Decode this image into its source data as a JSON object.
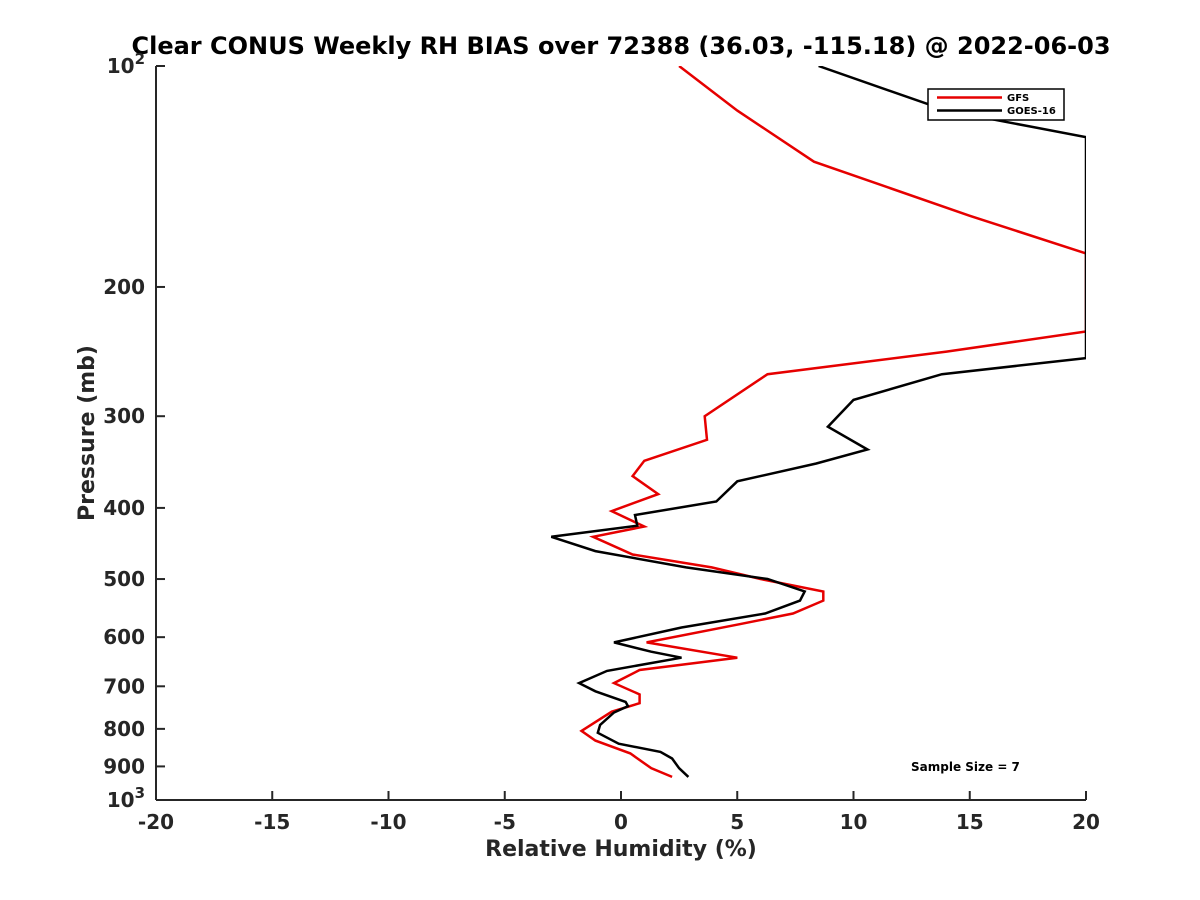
{
  "chart_data": {
    "type": "line",
    "title": "Clear CONUS Weekly RH BIAS over 72388 (36.03, -115.18) @ 2022-06-03",
    "xlabel": "Relative Humidity (%)",
    "ylabel": "Pressure (mb)",
    "xlim": [
      -20,
      20
    ],
    "ylim": [
      100,
      1000
    ],
    "y_scale": "log",
    "y_reversed": true,
    "x_ticks": [
      "-20",
      "-15",
      "-10",
      "-5",
      "0",
      "5",
      "10",
      "15",
      "20"
    ],
    "x_tick_values": [
      -20,
      -15,
      -10,
      -5,
      0,
      5,
      10,
      15,
      20
    ],
    "y_ticks": [
      {
        "value": 100,
        "label": "10",
        "sup": "2"
      },
      {
        "value": 200,
        "label": "200",
        "sup": ""
      },
      {
        "value": 300,
        "label": "300",
        "sup": ""
      },
      {
        "value": 400,
        "label": "400",
        "sup": ""
      },
      {
        "value": 500,
        "label": "500",
        "sup": ""
      },
      {
        "value": 600,
        "label": "600",
        "sup": ""
      },
      {
        "value": 700,
        "label": "700",
        "sup": ""
      },
      {
        "value": 800,
        "label": "800",
        "sup": ""
      },
      {
        "value": 900,
        "label": "900",
        "sup": ""
      },
      {
        "value": 1000,
        "label": "10",
        "sup": "3"
      }
    ],
    "grid": false,
    "legend_position": "top-right",
    "series": [
      {
        "name": "GFS",
        "color": "#e60000",
        "points": [
          [
            2.5,
            100
          ],
          [
            5.0,
            115
          ],
          [
            8.3,
            135
          ],
          [
            15.0,
            160
          ],
          [
            20.0,
            180
          ],
          [
            20.0,
            230
          ],
          [
            14.0,
            245
          ],
          [
            6.3,
            263
          ],
          [
            3.6,
            300
          ],
          [
            3.7,
            323
          ],
          [
            1.0,
            345
          ],
          [
            0.5,
            362
          ],
          [
            1.6,
            383
          ],
          [
            -0.4,
            404
          ],
          [
            1.0,
            424
          ],
          [
            -1.2,
            438
          ],
          [
            0.5,
            463
          ],
          [
            3.9,
            482
          ],
          [
            6.0,
            500
          ],
          [
            8.7,
            520
          ],
          [
            8.7,
            535
          ],
          [
            7.4,
            557
          ],
          [
            5.1,
            576
          ],
          [
            1.1,
            610
          ],
          [
            5.0,
            640
          ],
          [
            0.8,
            665
          ],
          [
            -0.3,
            693
          ],
          [
            0.8,
            718
          ],
          [
            0.8,
            738
          ],
          [
            -0.4,
            758
          ],
          [
            -1.7,
            805
          ],
          [
            -1.1,
            830
          ],
          [
            0.4,
            864
          ],
          [
            1.3,
            905
          ],
          [
            2.2,
            930
          ]
        ]
      },
      {
        "name": "GOES-16",
        "color": "#000000",
        "points": [
          [
            8.5,
            100
          ],
          [
            14.0,
            115
          ],
          [
            20.0,
            125
          ],
          [
            20.0,
            250
          ],
          [
            13.8,
            263
          ],
          [
            10.0,
            285
          ],
          [
            8.9,
            310
          ],
          [
            10.6,
            333
          ],
          [
            8.4,
            348
          ],
          [
            5.0,
            368
          ],
          [
            4.1,
            392
          ],
          [
            0.6,
            409
          ],
          [
            0.7,
            423
          ],
          [
            -3.0,
            438
          ],
          [
            -1.1,
            458
          ],
          [
            2.8,
            482
          ],
          [
            6.3,
            500
          ],
          [
            7.9,
            520
          ],
          [
            7.7,
            535
          ],
          [
            6.2,
            557
          ],
          [
            2.6,
            582
          ],
          [
            -0.3,
            610
          ],
          [
            1.3,
            628
          ],
          [
            2.6,
            640
          ],
          [
            -0.6,
            667
          ],
          [
            -1.8,
            693
          ],
          [
            -1.1,
            711
          ],
          [
            0.2,
            735
          ],
          [
            0.3,
            745
          ],
          [
            -0.3,
            760
          ],
          [
            -0.9,
            790
          ],
          [
            -1.0,
            810
          ],
          [
            -0.1,
            838
          ],
          [
            1.7,
            860
          ],
          [
            2.2,
            878
          ],
          [
            2.5,
            905
          ],
          [
            2.9,
            930
          ]
        ]
      }
    ],
    "annotation": "Sample Size = 7"
  }
}
